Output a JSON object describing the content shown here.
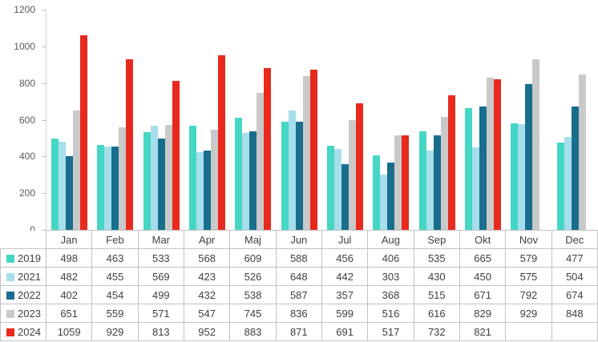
{
  "chart_data": {
    "type": "bar",
    "title": "",
    "xlabel": "",
    "ylabel": "",
    "categories": [
      "Jan",
      "Feb",
      "Mar",
      "Apr",
      "Maj",
      "Jun",
      "Jul",
      "Aug",
      "Sep",
      "Okt",
      "Nov",
      "Dec"
    ],
    "series": [
      {
        "name": "2019",
        "color": "#45d6c4",
        "values": [
          498,
          463,
          533,
          568,
          609,
          588,
          456,
          406,
          535,
          665,
          579,
          477
        ]
      },
      {
        "name": "2021",
        "color": "#a7deeb",
        "values": [
          482,
          455,
          569,
          423,
          526,
          648,
          442,
          303,
          430,
          450,
          575,
          504
        ]
      },
      {
        "name": "2022",
        "color": "#186e8c",
        "values": [
          402,
          454,
          499,
          432,
          538,
          587,
          357,
          368,
          515,
          671,
          792,
          674
        ]
      },
      {
        "name": "2023",
        "color": "#c9c9c9",
        "values": [
          651,
          559,
          571,
          547,
          745,
          836,
          599,
          516,
          616,
          829,
          929,
          848
        ]
      },
      {
        "name": "2024",
        "color": "#e8291e",
        "values": [
          1059,
          929,
          813,
          952,
          883,
          871,
          691,
          517,
          732,
          821,
          null,
          null
        ]
      }
    ],
    "ylim": [
      0,
      1200
    ],
    "yticks": [
      0,
      200,
      400,
      600,
      800,
      1000,
      1200
    ],
    "grid": false,
    "legend_position": "data-table-first-column",
    "data_table_shown": true
  },
  "style_meta": {
    "axis_text_color": "#595959",
    "table_text_color": "#404040",
    "table_border_color": "#c3c3c3",
    "axis_line_color": "#d2d2d2"
  }
}
